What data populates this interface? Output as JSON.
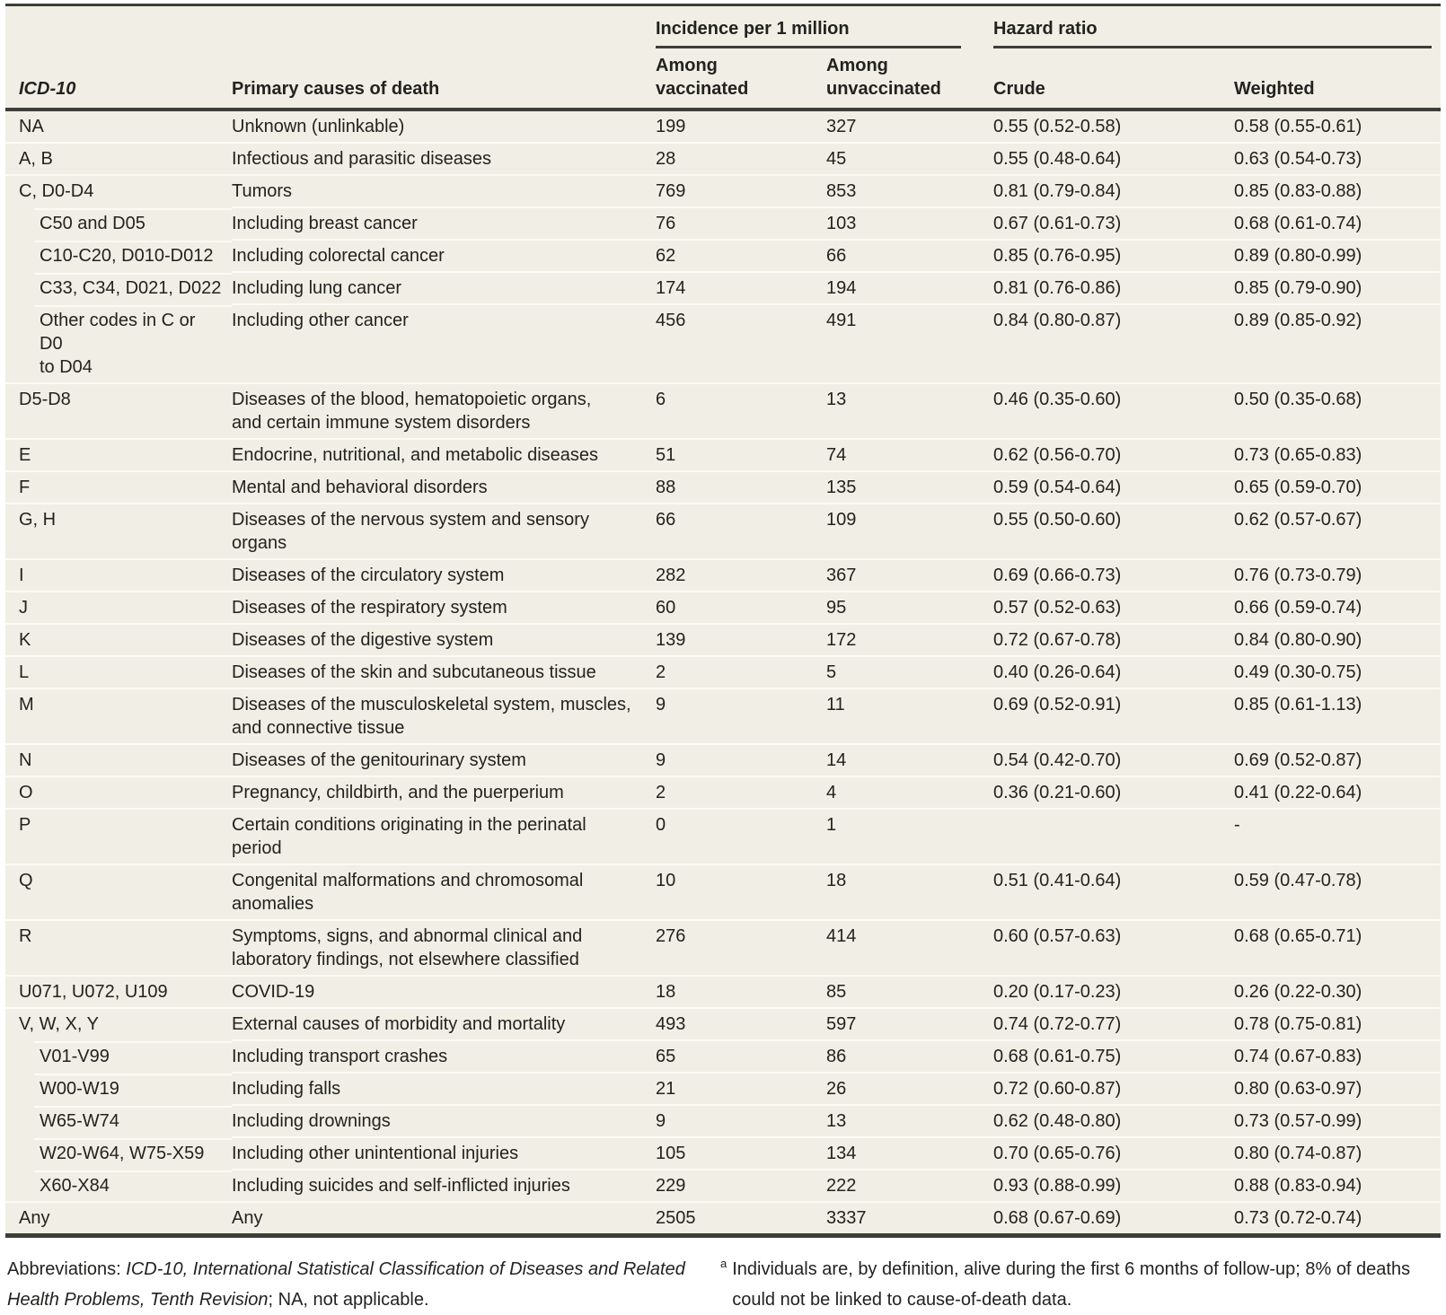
{
  "colors": {
    "page_bg": "#ffffff",
    "table_bg": "#f1efe5",
    "row_separator": "#fbfaf4",
    "rule": "#3d3d3a",
    "text": "#222220"
  },
  "header": {
    "group_incidence": "Incidence per 1 million",
    "group_hazard": "Hazard ratio",
    "col_icd10": "ICD-10",
    "col_cause": "Primary causes of death",
    "col_vaccinated": "Among\nvaccinated",
    "col_unvaccinated": "Among\nunvaccinated",
    "col_crude": "Crude",
    "col_weighted": "Weighted"
  },
  "rows": [
    {
      "icd": "NA",
      "cause": "Unknown (unlinkable)",
      "vaccinated": "199",
      "unvaccinated": "327",
      "crude": "0.55 (0.52-0.58)",
      "weighted": "0.58 (0.55-0.61)",
      "indent": false
    },
    {
      "icd": "A, B",
      "cause": "Infectious and parasitic diseases",
      "vaccinated": "28",
      "unvaccinated": "45",
      "crude": "0.55 (0.48-0.64)",
      "weighted": "0.63 (0.54-0.73)",
      "indent": false
    },
    {
      "icd": "C, D0-D4",
      "cause": "Tumors",
      "vaccinated": "769",
      "unvaccinated": "853",
      "crude": "0.81 (0.79-0.84)",
      "weighted": "0.85 (0.83-0.88)",
      "indent": false
    },
    {
      "icd": "C50 and D05",
      "cause": "Including breast cancer",
      "vaccinated": "76",
      "unvaccinated": "103",
      "crude": "0.67 (0.61-0.73)",
      "weighted": "0.68 (0.61-0.74)",
      "indent": true
    },
    {
      "icd": "C10-C20, D010-D012",
      "cause": "Including colorectal cancer",
      "vaccinated": "62",
      "unvaccinated": "66",
      "crude": "0.85 (0.76-0.95)",
      "weighted": "0.89 (0.80-0.99)",
      "indent": true
    },
    {
      "icd": "C33, C34, D021, D022",
      "cause": "Including lung cancer",
      "vaccinated": "174",
      "unvaccinated": "194",
      "crude": "0.81 (0.76-0.86)",
      "weighted": "0.85 (0.79-0.90)",
      "indent": true
    },
    {
      "icd": "Other codes in C or D0\nto D04",
      "cause": "Including other cancer",
      "vaccinated": "456",
      "unvaccinated": "491",
      "crude": "0.84 (0.80-0.87)",
      "weighted": "0.89 (0.85-0.92)",
      "indent": true
    },
    {
      "icd": "D5-D8",
      "cause": "Diseases of the blood, hematopoietic organs,\nand certain immune system disorders",
      "vaccinated": "6",
      "unvaccinated": "13",
      "crude": "0.46 (0.35-0.60)",
      "weighted": "0.50 (0.35-0.68)",
      "indent": false
    },
    {
      "icd": "E",
      "cause": "Endocrine, nutritional, and metabolic diseases",
      "vaccinated": "51",
      "unvaccinated": "74",
      "crude": "0.62 (0.56-0.70)",
      "weighted": "0.73 (0.65-0.83)",
      "indent": false
    },
    {
      "icd": "F",
      "cause": "Mental and behavioral disorders",
      "vaccinated": "88",
      "unvaccinated": "135",
      "crude": "0.59 (0.54-0.64)",
      "weighted": "0.65 (0.59-0.70)",
      "indent": false
    },
    {
      "icd": "G, H",
      "cause": "Diseases of the nervous system and sensory\norgans",
      "vaccinated": "66",
      "unvaccinated": "109",
      "crude": "0.55 (0.50-0.60)",
      "weighted": "0.62 (0.57-0.67)",
      "indent": false
    },
    {
      "icd": "I",
      "cause": "Diseases of the circulatory system",
      "vaccinated": "282",
      "unvaccinated": "367",
      "crude": "0.69 (0.66-0.73)",
      "weighted": "0.76 (0.73-0.79)",
      "indent": false
    },
    {
      "icd": "J",
      "cause": "Diseases of the respiratory system",
      "vaccinated": "60",
      "unvaccinated": "95",
      "crude": "0.57 (0.52-0.63)",
      "weighted": "0.66 (0.59-0.74)",
      "indent": false
    },
    {
      "icd": "K",
      "cause": "Diseases of the digestive system",
      "vaccinated": "139",
      "unvaccinated": "172",
      "crude": "0.72 (0.67-0.78)",
      "weighted": "0.84 (0.80-0.90)",
      "indent": false
    },
    {
      "icd": "L",
      "cause": "Diseases of the skin and subcutaneous tissue",
      "vaccinated": "2",
      "unvaccinated": "5",
      "crude": "0.40 (0.26-0.64)",
      "weighted": "0.49 (0.30-0.75)",
      "indent": false
    },
    {
      "icd": "M",
      "cause": "Diseases of the musculoskeletal system, muscles,\nand connective tissue",
      "vaccinated": "9",
      "unvaccinated": "11",
      "crude": "0.69 (0.52-0.91)",
      "weighted": "0.85 (0.61-1.13)",
      "indent": false
    },
    {
      "icd": "N",
      "cause": "Diseases of the genitourinary system",
      "vaccinated": "9",
      "unvaccinated": "14",
      "crude": "0.54 (0.42-0.70)",
      "weighted": "0.69 (0.52-0.87)",
      "indent": false
    },
    {
      "icd": "O",
      "cause": "Pregnancy, childbirth, and the puerperium",
      "vaccinated": "2",
      "unvaccinated": "4",
      "crude": "0.36 (0.21-0.60)",
      "weighted": "0.41 (0.22-0.64)",
      "indent": false
    },
    {
      "icd": "P",
      "cause": "Certain conditions originating in the perinatal\nperiod",
      "vaccinated": "0",
      "unvaccinated": "1",
      "crude": "",
      "weighted": "-",
      "indent": false
    },
    {
      "icd": "Q",
      "cause": "Congenital malformations and chromosomal\nanomalies",
      "vaccinated": "10",
      "unvaccinated": "18",
      "crude": "0.51 (0.41-0.64)",
      "weighted": "0.59 (0.47-0.78)",
      "indent": false
    },
    {
      "icd": "R",
      "cause": "Symptoms, signs, and abnormal clinical and\nlaboratory findings, not elsewhere classified",
      "vaccinated": "276",
      "unvaccinated": "414",
      "crude": "0.60 (0.57-0.63)",
      "weighted": "0.68 (0.65-0.71)",
      "indent": false
    },
    {
      "icd": "U071, U072, U109",
      "cause": "COVID-19",
      "vaccinated": "18",
      "unvaccinated": "85",
      "crude": "0.20 (0.17-0.23)",
      "weighted": "0.26 (0.22-0.30)",
      "indent": false
    },
    {
      "icd": "V, W, X, Y",
      "cause": "External causes of morbidity and mortality",
      "vaccinated": "493",
      "unvaccinated": "597",
      "crude": "0.74 (0.72-0.77)",
      "weighted": "0.78 (0.75-0.81)",
      "indent": false
    },
    {
      "icd": "V01-V99",
      "cause": "Including transport crashes",
      "vaccinated": "65",
      "unvaccinated": "86",
      "crude": "0.68 (0.61-0.75)",
      "weighted": "0.74 (0.67-0.83)",
      "indent": true
    },
    {
      "icd": "W00-W19",
      "cause": "Including falls",
      "vaccinated": "21",
      "unvaccinated": "26",
      "crude": "0.72 (0.60-0.87)",
      "weighted": "0.80 (0.63-0.97)",
      "indent": true
    },
    {
      "icd": "W65-W74",
      "cause": "Including drownings",
      "vaccinated": "9",
      "unvaccinated": "13",
      "crude": "0.62 (0.48-0.80)",
      "weighted": "0.73 (0.57-0.99)",
      "indent": true
    },
    {
      "icd": "W20-W64, W75-X59",
      "cause": "Including other unintentional injuries",
      "vaccinated": "105",
      "unvaccinated": "134",
      "crude": "0.70 (0.65-0.76)",
      "weighted": "0.80 (0.74-0.87)",
      "indent": true
    },
    {
      "icd": "X60-X84",
      "cause": "Including suicides and self-inflicted injuries",
      "vaccinated": "229",
      "unvaccinated": "222",
      "crude": "0.93 (0.88-0.99)",
      "weighted": "0.88 (0.83-0.94)",
      "indent": true
    },
    {
      "icd": "Any",
      "cause": "Any",
      "vaccinated": "2505",
      "unvaccinated": "3337",
      "crude": "0.68 (0.67-0.69)",
      "weighted": "0.73 (0.72-0.74)",
      "indent": false
    }
  ],
  "footnotes": {
    "abbr_prefix": "Abbreviations: ",
    "abbr_italic": "ICD-10, International Statistical Classification of Diseases and Related Health Problems, Tenth Revision",
    "abbr_suffix": "; NA, not applicable.",
    "note_marker": "a",
    "note_text": "Individuals are, by definition, alive during the first 6 months of follow-up; 8% of deaths could not be linked to cause-of-death data."
  }
}
